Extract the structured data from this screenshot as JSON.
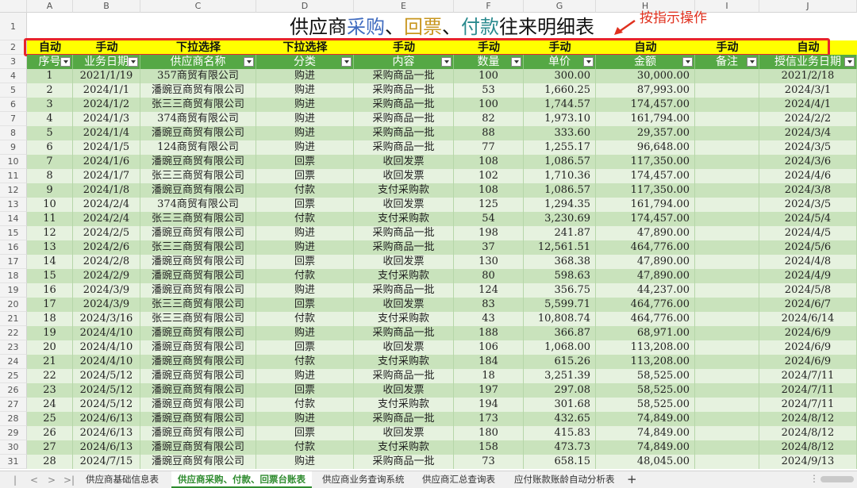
{
  "column_headers": [
    "A",
    "B",
    "C",
    "D",
    "E",
    "F",
    "G",
    "H",
    "I",
    "J"
  ],
  "row_numbers": [
    "1",
    "2",
    "3",
    "4",
    "5",
    "6",
    "7",
    "8",
    "9",
    "10",
    "11",
    "12",
    "13",
    "14",
    "15",
    "16",
    "17",
    "18",
    "19",
    "20",
    "21",
    "22",
    "23",
    "24",
    "25",
    "26",
    "27",
    "28",
    "29",
    "30",
    "31"
  ],
  "title": {
    "part1": "供应商",
    "part2": "采购",
    "sep1": "、",
    "part3": "回票",
    "sep2": "、",
    "part4": "付款",
    "part5": "往来明细表"
  },
  "annotation": "按指示操作",
  "input_modes": [
    "自动",
    "手动",
    "下拉选择",
    "下拉选择",
    "手动",
    "手动",
    "手动",
    "自动",
    "手动",
    "自动"
  ],
  "headers": [
    "序号",
    "业务日期",
    "供应商名称",
    "分类",
    "内容",
    "数量",
    "单价",
    "金额",
    "备注",
    "授信业务日期"
  ],
  "rows": [
    [
      "1",
      "2021/1/19",
      "357商贸有限公司",
      "购进",
      "采购商品一批",
      "100",
      "300.00",
      "30,000.00",
      "",
      "2021/2/18"
    ],
    [
      "2",
      "2024/1/1",
      "潘豌豆商贸有限公司",
      "购进",
      "采购商品一批",
      "53",
      "1,660.25",
      "87,993.00",
      "",
      "2024/3/1"
    ],
    [
      "3",
      "2024/1/2",
      "张三三商贸有限公司",
      "购进",
      "采购商品一批",
      "100",
      "1,744.57",
      "174,457.00",
      "",
      "2024/4/1"
    ],
    [
      "4",
      "2024/1/3",
      "374商贸有限公司",
      "购进",
      "采购商品一批",
      "82",
      "1,973.10",
      "161,794.00",
      "",
      "2024/2/2"
    ],
    [
      "5",
      "2024/1/4",
      "潘豌豆商贸有限公司",
      "购进",
      "采购商品一批",
      "88",
      "333.60",
      "29,357.00",
      "",
      "2024/3/4"
    ],
    [
      "6",
      "2024/1/5",
      "124商贸有限公司",
      "购进",
      "采购商品一批",
      "77",
      "1,255.17",
      "96,648.00",
      "",
      "2024/3/5"
    ],
    [
      "7",
      "2024/1/6",
      "潘豌豆商贸有限公司",
      "回票",
      "收回发票",
      "108",
      "1,086.57",
      "117,350.00",
      "",
      "2024/3/6"
    ],
    [
      "8",
      "2024/1/7",
      "张三三商贸有限公司",
      "回票",
      "收回发票",
      "102",
      "1,710.36",
      "174,457.00",
      "",
      "2024/4/6"
    ],
    [
      "9",
      "2024/1/8",
      "潘豌豆商贸有限公司",
      "付款",
      "支付采购款",
      "108",
      "1,086.57",
      "117,350.00",
      "",
      "2024/3/8"
    ],
    [
      "10",
      "2024/2/4",
      "374商贸有限公司",
      "回票",
      "收回发票",
      "125",
      "1,294.35",
      "161,794.00",
      "",
      "2024/3/5"
    ],
    [
      "11",
      "2024/2/4",
      "张三三商贸有限公司",
      "付款",
      "支付采购款",
      "54",
      "3,230.69",
      "174,457.00",
      "",
      "2024/5/4"
    ],
    [
      "12",
      "2024/2/5",
      "潘豌豆商贸有限公司",
      "购进",
      "采购商品一批",
      "198",
      "241.87",
      "47,890.00",
      "",
      "2024/4/5"
    ],
    [
      "13",
      "2024/2/6",
      "张三三商贸有限公司",
      "购进",
      "采购商品一批",
      "37",
      "12,561.51",
      "464,776.00",
      "",
      "2024/5/6"
    ],
    [
      "14",
      "2024/2/8",
      "潘豌豆商贸有限公司",
      "回票",
      "收回发票",
      "130",
      "368.38",
      "47,890.00",
      "",
      "2024/4/8"
    ],
    [
      "15",
      "2024/2/9",
      "潘豌豆商贸有限公司",
      "付款",
      "支付采购款",
      "80",
      "598.63",
      "47,890.00",
      "",
      "2024/4/9"
    ],
    [
      "16",
      "2024/3/9",
      "潘豌豆商贸有限公司",
      "购进",
      "采购商品一批",
      "124",
      "356.75",
      "44,237.00",
      "",
      "2024/5/8"
    ],
    [
      "17",
      "2024/3/9",
      "张三三商贸有限公司",
      "回票",
      "收回发票",
      "83",
      "5,599.71",
      "464,776.00",
      "",
      "2024/6/7"
    ],
    [
      "18",
      "2024/3/16",
      "张三三商贸有限公司",
      "付款",
      "支付采购款",
      "43",
      "10,808.74",
      "464,776.00",
      "",
      "2024/6/14"
    ],
    [
      "19",
      "2024/4/10",
      "潘豌豆商贸有限公司",
      "购进",
      "采购商品一批",
      "188",
      "366.87",
      "68,971.00",
      "",
      "2024/6/9"
    ],
    [
      "20",
      "2024/4/10",
      "潘豌豆商贸有限公司",
      "回票",
      "收回发票",
      "106",
      "1,068.00",
      "113,208.00",
      "",
      "2024/6/9"
    ],
    [
      "21",
      "2024/4/10",
      "潘豌豆商贸有限公司",
      "付款",
      "支付采购款",
      "184",
      "615.26",
      "113,208.00",
      "",
      "2024/6/9"
    ],
    [
      "22",
      "2024/5/12",
      "潘豌豆商贸有限公司",
      "购进",
      "采购商品一批",
      "18",
      "3,251.39",
      "58,525.00",
      "",
      "2024/7/11"
    ],
    [
      "23",
      "2024/5/12",
      "潘豌豆商贸有限公司",
      "回票",
      "收回发票",
      "197",
      "297.08",
      "58,525.00",
      "",
      "2024/7/11"
    ],
    [
      "24",
      "2024/5/12",
      "潘豌豆商贸有限公司",
      "付款",
      "支付采购款",
      "194",
      "301.68",
      "58,525.00",
      "",
      "2024/7/11"
    ],
    [
      "25",
      "2024/6/13",
      "潘豌豆商贸有限公司",
      "购进",
      "采购商品一批",
      "173",
      "432.65",
      "74,849.00",
      "",
      "2024/8/12"
    ],
    [
      "26",
      "2024/6/13",
      "潘豌豆商贸有限公司",
      "回票",
      "收回发票",
      "180",
      "415.83",
      "74,849.00",
      "",
      "2024/8/12"
    ],
    [
      "27",
      "2024/6/13",
      "潘豌豆商贸有限公司",
      "付款",
      "支付采购款",
      "158",
      "473.73",
      "74,849.00",
      "",
      "2024/8/12"
    ],
    [
      "28",
      "2024/7/15",
      "潘豌豆商贸有限公司",
      "购进",
      "采购商品一批",
      "73",
      "658.15",
      "48,045.00",
      "",
      "2024/9/13"
    ]
  ],
  "sheet_tabs": [
    "供应商基础信息表",
    "供应商采购、付款、回票台账表",
    "供应商业务查询系统",
    "供应商汇总查询表",
    "应付账款账龄自动分析表"
  ],
  "active_tab_index": 1,
  "nav_buttons": [
    "|<",
    "<",
    ">",
    ">|"
  ],
  "add_sheet_label": "+",
  "colors": {
    "header_green": "#55a845",
    "band_dark": "#c9e3bc",
    "band_light": "#e6f2df",
    "mode_row_yellow": "#ffff00",
    "annotation_red": "#e0301e"
  }
}
